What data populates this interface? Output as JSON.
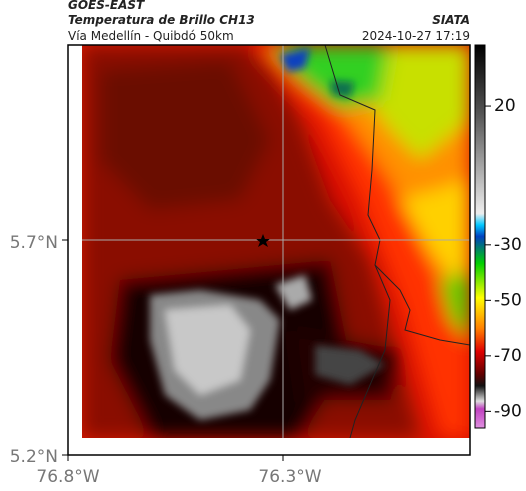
{
  "header": {
    "title": "GOES-EAST",
    "subtitle": "Temperatura de Brillo CH13",
    "location": "Vía Medellín - Quibdó 50km",
    "source": "SIATA",
    "timestamp": "2024-10-27 17:19"
  },
  "axes": {
    "yticks": [
      "5.7°N",
      "5.2°N"
    ],
    "xticks": [
      "76.8°W",
      "76.3°W"
    ]
  },
  "colorbar": {
    "lim": [
      42,
      -96
    ],
    "ticks": [
      20,
      -30,
      -50,
      -70,
      -90
    ]
  }
}
